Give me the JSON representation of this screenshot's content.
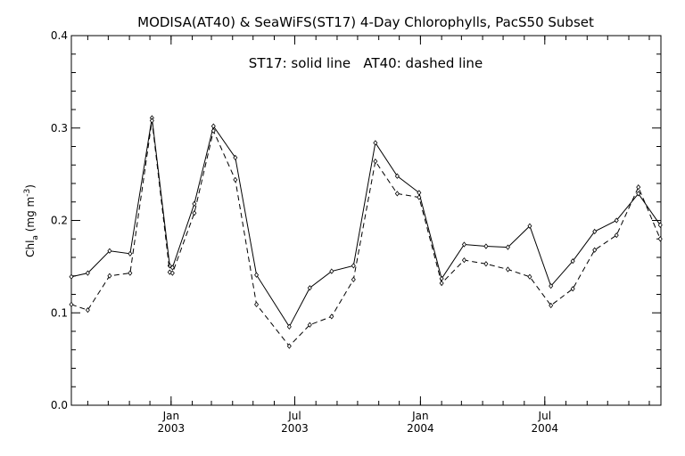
{
  "chart_data": {
    "type": "line",
    "title": "MODISA(AT40) & SeaWiFS(ST17) 4-Day Chlorophylls, PacS50 Subset",
    "annotation": "ST17: solid line   AT40: dashed line",
    "ylabel": {
      "main": "Chl",
      "sub": "a",
      "unit_pre": " (mg m",
      "sup": "-3",
      "unit_post": ")"
    },
    "ylim": [
      0.0,
      0.4
    ],
    "xlim": [
      "2002-08-08",
      "2004-12-18"
    ],
    "y_ticks": [
      {
        "value": 0.0,
        "label": "0.0"
      },
      {
        "value": 0.1,
        "label": "0.1"
      },
      {
        "value": 0.2,
        "label": "0.2"
      },
      {
        "value": 0.3,
        "label": "0.3"
      },
      {
        "value": 0.4,
        "label": "0.4"
      }
    ],
    "x_ticks": [
      {
        "date": "2003-01-01",
        "month": "Jan",
        "year": "2003"
      },
      {
        "date": "2003-07-01",
        "month": "Jul",
        "year": "2003"
      },
      {
        "date": "2004-01-01",
        "month": "Jan",
        "year": "2004"
      },
      {
        "date": "2004-07-01",
        "month": "Jul",
        "year": "2004"
      }
    ],
    "series": [
      {
        "style": "solid",
        "points": [
          [
            "2002-08-08",
            0.139
          ],
          [
            "2002-09-01",
            0.143
          ],
          [
            "2002-10-03",
            0.167
          ],
          [
            "2002-11-02",
            0.164
          ],
          [
            "2002-12-04",
            0.311
          ],
          [
            "2002-12-30",
            0.151
          ],
          [
            "2003-01-03",
            0.149
          ],
          [
            "2003-02-04",
            0.218
          ],
          [
            "2003-03-04",
            0.302
          ],
          [
            "2003-04-05",
            0.268
          ],
          [
            "2003-05-06",
            0.141
          ],
          [
            "2003-06-23",
            0.085
          ],
          [
            "2003-07-23",
            0.127
          ],
          [
            "2003-08-24",
            0.145
          ],
          [
            "2003-09-25",
            0.151
          ],
          [
            "2003-10-27",
            0.284
          ],
          [
            "2003-11-28",
            0.248
          ],
          [
            "2003-12-30",
            0.23
          ],
          [
            "2004-02-01",
            0.137
          ],
          [
            "2004-03-05",
            0.174
          ],
          [
            "2004-04-06",
            0.172
          ],
          [
            "2004-05-08",
            0.171
          ],
          [
            "2004-06-09",
            0.194
          ],
          [
            "2004-07-10",
            0.129
          ],
          [
            "2004-08-11",
            0.156
          ],
          [
            "2004-09-12",
            0.188
          ],
          [
            "2004-10-14",
            0.2
          ],
          [
            "2004-11-15",
            0.229
          ],
          [
            "2004-12-17",
            0.195
          ]
        ]
      },
      {
        "style": "dashed",
        "points": [
          [
            "2002-08-08",
            0.109
          ],
          [
            "2002-09-01",
            0.103
          ],
          [
            "2002-10-03",
            0.14
          ],
          [
            "2002-11-02",
            0.143
          ],
          [
            "2002-12-04",
            0.308
          ],
          [
            "2002-12-30",
            0.144
          ],
          [
            "2003-01-03",
            0.143
          ],
          [
            "2003-02-04",
            0.208
          ],
          [
            "2003-03-04",
            0.297
          ],
          [
            "2003-04-05",
            0.244
          ],
          [
            "2003-05-06",
            0.109
          ],
          [
            "2003-06-23",
            0.064
          ],
          [
            "2003-07-23",
            0.087
          ],
          [
            "2003-08-24",
            0.096
          ],
          [
            "2003-09-25",
            0.136
          ],
          [
            "2003-10-27",
            0.264
          ],
          [
            "2003-11-28",
            0.229
          ],
          [
            "2003-12-30",
            0.225
          ],
          [
            "2004-02-01",
            0.132
          ],
          [
            "2004-03-05",
            0.157
          ],
          [
            "2004-04-06",
            0.153
          ],
          [
            "2004-05-08",
            0.147
          ],
          [
            "2004-06-09",
            0.139
          ],
          [
            "2004-07-10",
            0.108
          ],
          [
            "2004-08-11",
            0.126
          ],
          [
            "2004-09-12",
            0.168
          ],
          [
            "2004-10-14",
            0.184
          ],
          [
            "2004-11-15",
            0.236
          ],
          [
            "2004-12-17",
            0.18
          ]
        ]
      }
    ],
    "grid": false,
    "legend": "none"
  }
}
